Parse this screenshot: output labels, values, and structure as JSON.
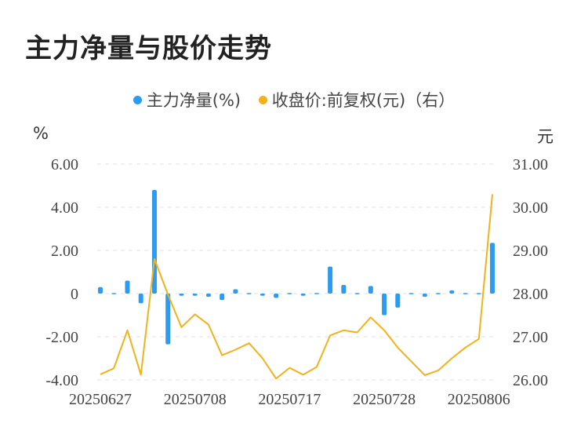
{
  "title": "主力净量与股价走势",
  "legend": {
    "left_label": "主力净量(%)",
    "right_label": "收盘价:前复权(元)（右）"
  },
  "colors": {
    "bar": "#2d9bef",
    "line": "#f2b21a",
    "grid": "#e2e2e2",
    "text": "#444444"
  },
  "chart_data": {
    "type": "bar+line",
    "title": "主力净量与股价走势",
    "left_axis": {
      "label": "%",
      "ylim": [
        -4,
        6
      ],
      "ticks": [
        "-4.00",
        "-2.00",
        "0",
        "2.00",
        "4.00",
        "6.00"
      ]
    },
    "right_axis": {
      "label": "元",
      "ylim": [
        26,
        31
      ],
      "ticks": [
        "26.00",
        "27.00",
        "28.00",
        "29.00",
        "30.00",
        "31.00"
      ]
    },
    "x_tick_labels": [
      "20250627",
      "20250708",
      "20250717",
      "20250728",
      "20250806"
    ],
    "x_tick_index": [
      0,
      7,
      14,
      21,
      28
    ],
    "series": [
      {
        "name": "主力净量(%)",
        "axis": "left",
        "kind": "bar",
        "values": [
          0.3,
          -0.05,
          0.6,
          -0.45,
          4.8,
          -2.35,
          -0.1,
          -0.1,
          -0.15,
          -0.3,
          0.2,
          -0.05,
          -0.1,
          -0.2,
          -0.05,
          -0.1,
          0.0,
          1.25,
          0.4,
          -0.05,
          0.35,
          -1.0,
          -0.65,
          -0.05,
          -0.15,
          0.0,
          0.15,
          0.0,
          -0.05,
          2.35
        ]
      },
      {
        "name": "收盘价:前复权(元)（右）",
        "axis": "right",
        "kind": "line",
        "values": [
          26.13,
          26.27,
          27.15,
          26.12,
          28.8,
          27.98,
          27.22,
          27.52,
          27.28,
          26.57,
          26.7,
          26.85,
          26.5,
          26.03,
          26.28,
          26.12,
          26.3,
          27.03,
          27.15,
          27.1,
          27.45,
          27.15,
          26.75,
          26.43,
          26.11,
          26.22,
          26.5,
          26.75,
          26.95,
          30.3
        ]
      }
    ],
    "grid": true,
    "legend_position": "top-center"
  }
}
